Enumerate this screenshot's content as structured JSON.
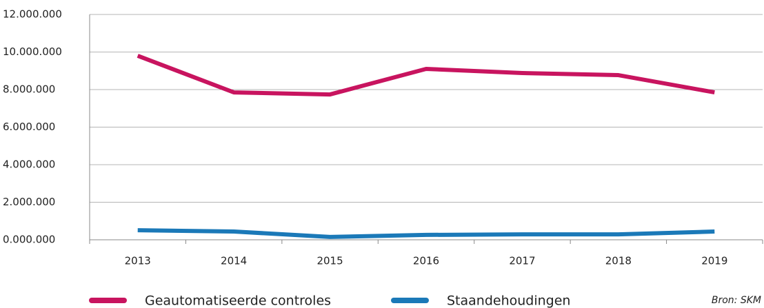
{
  "chart_data": {
    "type": "line",
    "categories": [
      "2013",
      "2014",
      "2015",
      "2016",
      "2017",
      "2018",
      "2019"
    ],
    "series": [
      {
        "name": "Geautomatiseerde controles",
        "color": "#c8145f",
        "values": [
          9800000,
          7850000,
          7740000,
          9100000,
          8880000,
          8770000,
          7850000
        ]
      },
      {
        "name": "Staandehoudingen",
        "color": "#1b79b8",
        "values": [
          510000,
          440000,
          150000,
          260000,
          290000,
          290000,
          440000
        ]
      }
    ],
    "ylim": [
      0,
      12000000
    ],
    "yticks": [
      {
        "value": 0,
        "label": "0.000.000"
      },
      {
        "value": 2000000,
        "label": "2.000.000"
      },
      {
        "value": 4000000,
        "label": "4.000.000"
      },
      {
        "value": 6000000,
        "label": "6.000.000"
      },
      {
        "value": 8000000,
        "label": "8.000.000"
      },
      {
        "value": 10000000,
        "label": "10.000.000"
      },
      {
        "value": 12000000,
        "label": "12.000.000"
      }
    ],
    "grid": true,
    "legend": "bottom",
    "source": "Bron: SKM"
  }
}
